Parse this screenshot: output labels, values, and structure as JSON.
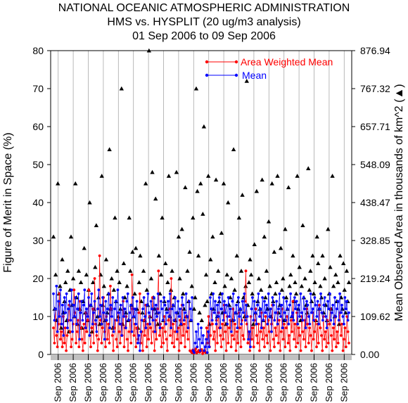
{
  "chart_data": {
    "type": "scatter",
    "title_lines": [
      "NATIONAL OCEANIC ATMOSPHERIC ADMINISTRATION",
      "HMS vs. HYSPLIT (20 ug/m3 analysis)",
      "01 Sep 2006 to 09 Sep 2006"
    ],
    "ylabel_left": "Figure of Merit in Space (%)",
    "ylabel_right": "Mean Observed Area in thousands of km^2",
    "ylabel_right_marker": "▲",
    "ylim_left": [
      0,
      80
    ],
    "y_ticks_left": [
      "0",
      "10",
      "20",
      "30",
      "40",
      "50",
      "60",
      "70",
      "80"
    ],
    "ylim_right": [
      0,
      876.94
    ],
    "y_ticks_right": [
      "0.00",
      "109.62",
      "219.24",
      "328.85",
      "438.47",
      "548.09",
      "657.71",
      "767.32",
      "876.94"
    ],
    "x_tick_label": "Sep 2006",
    "x_tick_count": 20,
    "legend": {
      "placement": "top-right",
      "entries": [
        {
          "name": "Area Weighted Mean",
          "color": "#ff0000",
          "marker": "circle"
        },
        {
          "name": "Mean",
          "color": "#0000ff",
          "marker": "circle"
        }
      ]
    },
    "series": [
      {
        "name": "Area Weighted Mean",
        "color": "#ff0000",
        "axis": "left",
        "values": [
          7,
          3,
          12,
          5,
          2,
          8,
          16,
          4,
          6,
          2,
          10,
          3,
          7,
          1,
          5,
          9,
          13,
          6,
          2,
          4,
          8,
          17,
          11,
          3,
          6,
          9,
          2,
          14,
          7,
          4,
          1,
          8,
          3,
          11,
          6,
          9,
          17,
          5,
          2,
          7,
          12,
          3,
          20,
          8,
          5,
          1,
          4,
          26,
          9,
          3,
          7,
          15,
          6,
          2,
          10,
          4,
          8,
          3,
          18,
          12,
          5,
          1,
          7,
          9,
          4,
          2,
          11,
          6,
          3,
          8,
          5,
          14,
          2,
          7,
          10,
          4,
          1,
          6,
          9,
          3,
          21,
          12,
          5,
          8,
          2,
          7,
          4,
          11,
          16,
          3,
          6,
          1,
          9,
          5,
          13,
          2,
          8,
          4,
          10,
          7,
          3,
          15,
          6,
          1,
          9,
          4,
          12,
          22,
          5,
          8,
          2,
          7,
          3,
          10,
          6,
          4,
          1,
          9,
          12,
          5,
          20,
          3,
          8,
          2,
          6,
          11,
          4,
          7,
          1,
          9,
          3,
          13,
          5,
          8,
          2,
          10,
          6,
          4,
          14,
          1,
          0.8,
          0.5,
          1.2,
          0.3,
          0.9,
          1.5,
          0.4,
          0.7,
          1.1,
          0.6,
          0.9,
          1.3,
          0.2,
          0.8,
          1.0,
          0.5,
          7,
          3,
          10,
          2,
          5,
          12,
          8,
          4,
          6,
          1,
          9,
          3,
          11,
          7,
          5,
          2,
          8,
          4,
          13,
          6,
          1,
          10,
          3,
          7,
          9,
          2,
          5,
          12,
          4,
          8,
          1,
          6,
          3,
          11,
          7,
          2,
          9,
          5,
          4,
          14,
          22,
          8,
          3,
          6,
          1,
          10,
          4,
          7,
          2,
          9,
          12,
          5,
          3,
          8,
          1,
          6,
          11,
          4,
          7,
          2,
          10,
          5,
          3,
          9,
          6,
          1,
          8,
          13,
          4,
          2,
          7,
          5,
          11,
          3,
          9,
          1,
          6,
          12,
          4,
          8,
          2,
          7,
          10,
          3,
          5,
          1,
          9,
          6,
          14,
          4,
          8,
          2,
          11,
          3,
          7,
          5,
          1,
          10,
          6,
          4,
          9,
          2,
          12,
          8,
          3,
          7,
          5,
          1,
          11,
          4,
          6,
          9,
          2,
          8,
          3,
          13,
          7,
          5,
          1,
          10,
          4,
          6,
          2,
          9,
          3,
          8,
          12,
          5,
          1,
          7,
          4,
          10,
          2,
          6,
          3,
          9,
          11,
          5,
          8,
          1,
          4,
          7,
          2,
          10,
          6,
          3
        ]
      },
      {
        "name": "Mean",
        "color": "#0000ff",
        "axis": "left",
        "values": [
          16,
          9,
          12,
          18,
          6,
          14,
          10,
          17,
          8,
          13,
          5,
          15,
          11,
          16,
          7,
          12,
          14,
          9,
          17,
          6,
          13,
          10,
          15,
          8,
          12,
          16,
          4,
          11,
          14,
          9,
          13,
          17,
          7,
          12,
          10,
          15,
          5,
          13,
          16,
          8,
          11,
          14,
          9,
          6,
          12,
          17,
          10,
          13,
          8,
          15,
          11,
          4,
          14,
          9,
          12,
          16,
          7,
          13,
          10,
          15,
          6,
          12,
          14,
          9,
          17,
          11,
          8,
          13,
          5,
          15,
          10,
          12,
          7,
          14,
          16,
          9,
          11,
          13,
          6,
          15,
          10,
          12,
          8,
          14,
          3,
          5,
          1,
          6,
          9,
          12,
          15,
          10,
          7,
          13,
          16,
          11,
          8,
          14,
          12,
          9,
          15,
          6,
          13,
          10,
          16,
          11,
          7,
          14,
          12,
          9,
          15,
          13,
          8,
          11,
          14,
          10,
          16,
          7,
          12,
          13,
          9,
          15,
          11,
          6,
          14,
          10,
          12,
          8,
          15,
          13,
          9,
          11,
          16,
          10,
          7,
          14,
          12,
          9,
          15,
          1,
          0.5,
          3,
          6,
          2,
          8,
          4,
          1,
          7,
          3,
          5,
          1,
          2,
          4,
          0.5,
          6,
          2,
          15,
          12,
          9,
          16,
          11,
          14,
          8,
          13,
          10,
          15,
          7,
          12,
          16,
          9,
          14,
          11,
          13,
          8,
          15,
          10,
          12,
          6,
          14,
          16,
          9,
          11,
          13,
          7,
          15,
          10,
          12,
          8,
          14,
          11,
          16,
          9,
          13,
          10,
          4,
          6,
          2,
          12,
          15,
          9,
          14,
          11,
          8,
          13,
          16,
          10,
          12,
          7,
          15,
          9,
          14,
          11,
          13,
          8,
          16,
          10,
          12,
          6,
          15,
          13,
          9,
          11,
          14,
          8,
          12,
          16,
          10,
          13,
          7,
          15,
          11,
          9,
          14,
          12,
          8,
          13,
          16,
          10,
          11,
          9,
          15,
          12,
          14,
          8,
          13,
          10,
          16,
          11,
          9,
          15,
          12,
          7,
          14,
          13,
          10,
          8,
          16,
          11,
          12,
          9,
          15,
          13,
          10,
          14,
          8,
          12,
          16,
          11,
          9,
          13,
          15,
          10,
          7,
          14,
          12,
          16,
          9,
          11,
          13,
          8,
          15,
          10,
          12,
          14,
          9,
          16,
          11,
          13,
          10,
          8,
          15,
          12,
          14,
          9,
          11
        ]
      },
      {
        "name": "Mean Observed Area",
        "color": "#000000",
        "axis": "right",
        "marker": "triangle",
        "values": [
          31,
          12,
          21,
          9,
          45,
          16,
          18,
          7,
          25,
          11,
          14,
          19,
          9,
          22,
          6,
          17,
          31,
          13,
          20,
          10,
          45,
          15,
          8,
          22,
          12,
          19,
          7,
          14,
          28,
          11,
          21,
          9,
          17,
          40,
          13,
          6,
          19,
          12,
          23,
          34,
          10,
          15,
          8,
          21,
          47,
          13,
          18,
          9,
          25,
          11,
          16,
          54,
          12,
          20,
          7,
          17,
          36,
          14,
          22,
          10,
          19,
          12,
          70,
          8,
          24,
          15,
          11,
          18,
          9,
          36,
          22,
          13,
          27,
          10,
          16,
          28,
          12,
          7,
          19,
          26,
          14,
          11,
          22,
          9,
          45,
          17,
          13,
          80,
          10,
          20,
          48,
          15,
          12,
          41,
          11,
          8,
          26,
          16,
          21,
          36,
          9,
          14,
          24,
          12,
          19,
          47,
          10,
          17,
          22,
          13,
          15,
          9,
          48,
          11,
          31,
          20,
          8,
          33,
          16,
          12,
          44,
          10,
          22,
          14,
          27,
          9,
          18,
          36,
          12,
          15,
          70,
          43,
          26,
          11,
          45,
          9,
          37,
          60,
          13,
          21,
          14,
          47,
          8,
          25,
          16,
          31,
          12,
          19,
          46,
          10,
          22,
          14,
          16,
          32,
          11,
          45,
          18,
          8,
          21,
          40,
          13,
          15,
          20,
          9,
          54,
          17,
          11,
          26,
          14,
          36,
          12,
          22,
          42,
          15,
          10,
          18,
          72,
          13,
          19,
          25,
          21,
          16,
          8,
          29,
          11,
          43,
          14,
          20,
          12,
          17,
          46,
          9,
          31,
          15,
          22,
          12,
          35,
          18,
          10,
          45,
          14,
          27,
          16,
          19,
          47,
          11,
          13,
          28,
          17,
          20,
          9,
          33,
          15,
          12,
          44,
          18,
          21,
          10,
          26,
          14,
          19,
          16,
          47,
          12,
          23,
          9,
          18,
          34,
          15,
          20,
          13,
          11,
          49,
          17,
          22,
          14,
          26,
          16,
          19,
          9,
          31,
          24,
          12,
          18,
          15,
          26,
          11,
          20,
          13,
          9,
          33,
          16,
          23,
          12,
          47,
          18,
          10,
          21,
          14,
          19,
          8,
          26,
          15,
          12,
          24,
          17,
          11,
          22,
          14,
          19
        ]
      }
    ]
  }
}
